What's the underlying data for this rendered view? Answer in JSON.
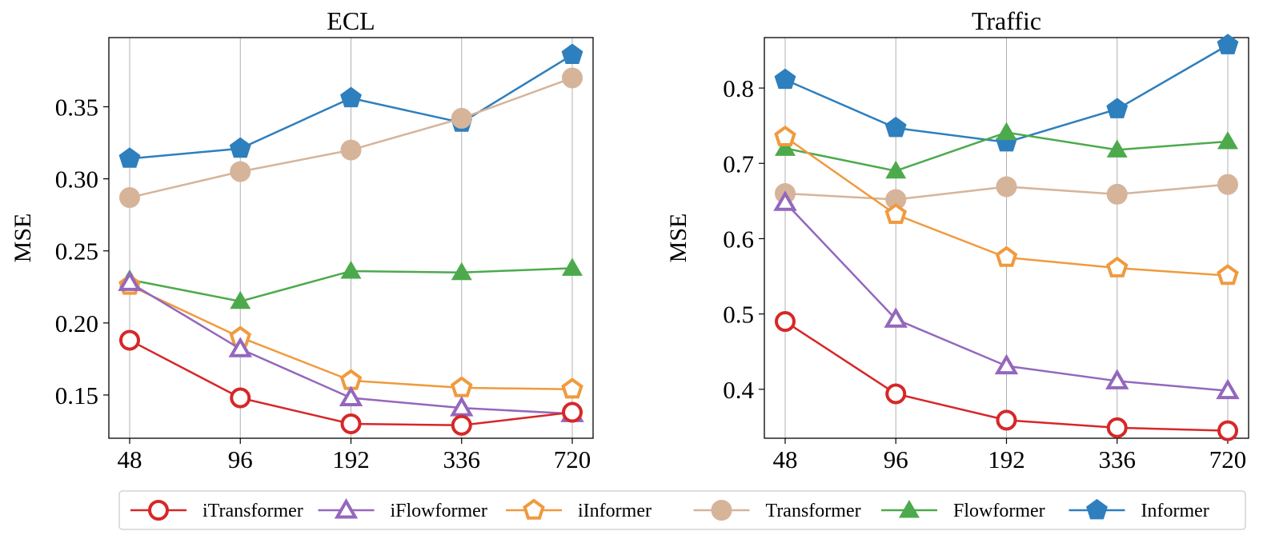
{
  "chart_data": [
    {
      "type": "line",
      "title": "ECL",
      "xlabel": "",
      "ylabel": "MSE",
      "categories": [
        "48",
        "96",
        "192",
        "336",
        "720"
      ],
      "ylim": [
        0.12,
        0.398
      ],
      "yticks": [
        0.15,
        0.2,
        0.25,
        0.3,
        0.35
      ],
      "ytick_labels": [
        "0.15",
        "0.20",
        "0.25",
        "0.30",
        "0.35"
      ],
      "grid": "x",
      "series": [
        {
          "name": "Informer",
          "values": [
            0.314,
            0.321,
            0.356,
            0.339,
            0.386
          ]
        },
        {
          "name": "Transformer",
          "values": [
            0.287,
            0.305,
            0.32,
            0.342,
            0.37
          ]
        },
        {
          "name": "Flowformer",
          "values": [
            0.23,
            0.215,
            0.236,
            0.235,
            0.238
          ]
        },
        {
          "name": "iInformer",
          "values": [
            0.226,
            0.19,
            0.16,
            0.155,
            0.154
          ]
        },
        {
          "name": "iFlowformer",
          "values": [
            0.228,
            0.182,
            0.148,
            0.141,
            0.137
          ]
        },
        {
          "name": "iTransformer",
          "values": [
            0.188,
            0.148,
            0.13,
            0.129,
            0.138
          ]
        }
      ]
    },
    {
      "type": "line",
      "title": "Traffic",
      "xlabel": "",
      "ylabel": "MSE",
      "categories": [
        "48",
        "96",
        "192",
        "336",
        "720"
      ],
      "ylim": [
        0.335,
        0.867
      ],
      "yticks": [
        0.4,
        0.5,
        0.6,
        0.7,
        0.8
      ],
      "ytick_labels": [
        "0.4",
        "0.5",
        "0.6",
        "0.7",
        "0.8"
      ],
      "grid": "x",
      "series": [
        {
          "name": "Informer",
          "values": [
            0.811,
            0.747,
            0.728,
            0.772,
            0.857
          ]
        },
        {
          "name": "Flowformer",
          "values": [
            0.72,
            0.69,
            0.741,
            0.718,
            0.729
          ]
        },
        {
          "name": "Transformer",
          "values": [
            0.66,
            0.652,
            0.669,
            0.659,
            0.672
          ]
        },
        {
          "name": "iInformer",
          "values": [
            0.735,
            0.632,
            0.575,
            0.561,
            0.551
          ]
        },
        {
          "name": "iFlowformer",
          "values": [
            0.648,
            0.493,
            0.431,
            0.411,
            0.398
          ]
        },
        {
          "name": "iTransformer",
          "values": [
            0.49,
            0.394,
            0.359,
            0.349,
            0.345
          ]
        }
      ]
    }
  ],
  "legend": {
    "placement": "bottom",
    "entries": [
      {
        "name": "iTransformer",
        "color": "#d62728",
        "marker": "circle",
        "filled": false
      },
      {
        "name": "iFlowformer",
        "color": "#9467bd",
        "marker": "triangle",
        "filled": false
      },
      {
        "name": "iInformer",
        "color": "#f09a3e",
        "marker": "pentagon",
        "filled": false
      },
      {
        "name": "Transformer",
        "color": "#d6b49a",
        "marker": "circle",
        "filled": true
      },
      {
        "name": "Flowformer",
        "color": "#4caa4c",
        "marker": "triangle",
        "filled": true
      },
      {
        "name": "Informer",
        "color": "#2e7fbd",
        "marker": "pentagon",
        "filled": true
      }
    ]
  }
}
